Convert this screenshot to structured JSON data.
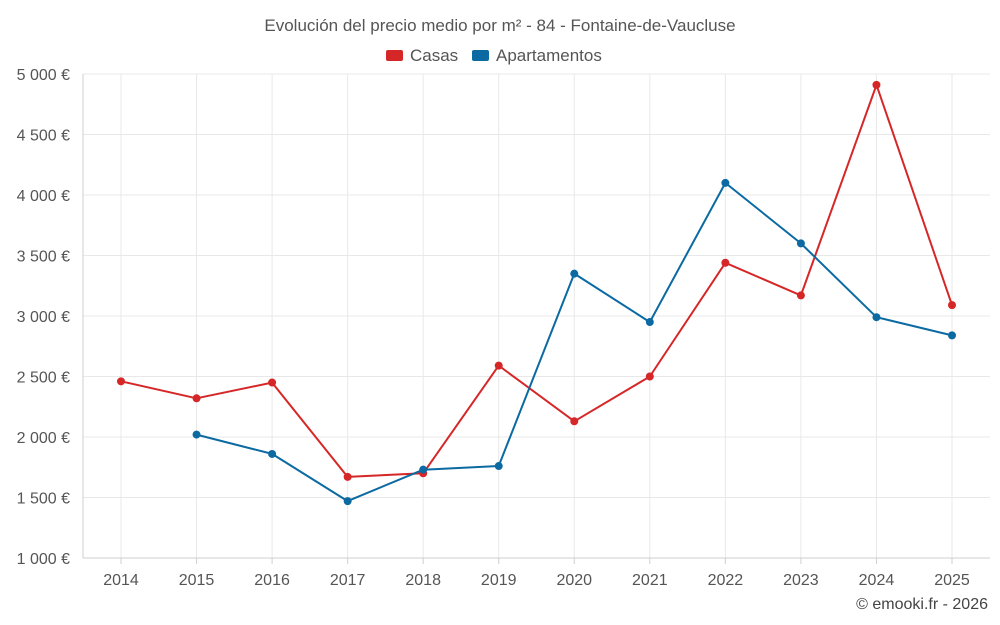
{
  "chart_data": {
    "type": "line",
    "title": "Evolución del precio medio por m² - 84 - Fontaine-de-Vaucluse",
    "x": [
      2014,
      2015,
      2016,
      2017,
      2018,
      2019,
      2020,
      2021,
      2022,
      2023,
      2024,
      2025
    ],
    "x_tick_labels": [
      "2014",
      "2015",
      "2016",
      "2017",
      "2018",
      "2019",
      "2020",
      "2021",
      "2022",
      "2023",
      "2024",
      "2025"
    ],
    "ylim": [
      1000,
      5000
    ],
    "y_ticks": [
      1000,
      1500,
      2000,
      2500,
      3000,
      3500,
      4000,
      4500,
      5000
    ],
    "y_tick_labels": [
      "1 000 €",
      "1 500 €",
      "2 000 €",
      "2 500 €",
      "3 000 €",
      "3 500 €",
      "4 000 €",
      "4 500 €",
      "5 000 €"
    ],
    "grid": true,
    "legend_position": "top-center",
    "series": [
      {
        "name": "Casas",
        "color": "#d62728",
        "values": [
          2460,
          2320,
          2450,
          1670,
          1700,
          2590,
          2130,
          2500,
          3440,
          3170,
          4910,
          3090
        ]
      },
      {
        "name": "Apartamentos",
        "color": "#0b6aa2",
        "values": [
          null,
          2020,
          1860,
          1470,
          1730,
          1760,
          3350,
          2950,
          4100,
          3600,
          2990,
          2840
        ]
      }
    ]
  },
  "credit": "© emooki.fr - 2026"
}
